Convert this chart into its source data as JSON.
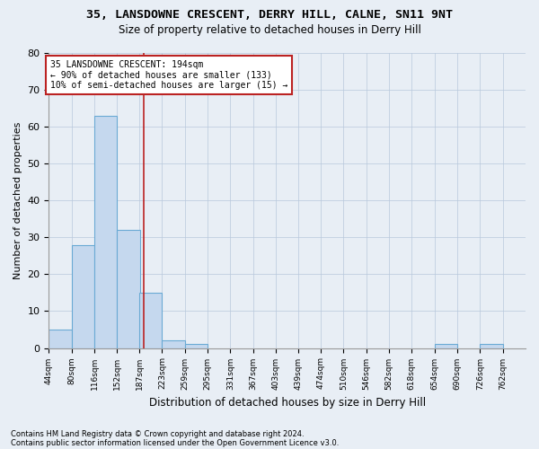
{
  "title1": "35, LANSDOWNE CRESCENT, DERRY HILL, CALNE, SN11 9NT",
  "title2": "Size of property relative to detached houses in Derry Hill",
  "xlabel": "Distribution of detached houses by size in Derry Hill",
  "ylabel": "Number of detached properties",
  "footnote1": "Contains HM Land Registry data © Crown copyright and database right 2024.",
  "footnote2": "Contains public sector information licensed under the Open Government Licence v3.0.",
  "bin_edges": [
    44,
    80,
    116,
    152,
    187,
    223,
    259,
    295,
    331,
    367,
    403,
    439,
    474,
    510,
    546,
    582,
    618,
    654,
    690,
    726,
    762
  ],
  "bar_heights": [
    5,
    28,
    63,
    32,
    15,
    2,
    1,
    0,
    0,
    0,
    0,
    0,
    0,
    0,
    0,
    0,
    0,
    1,
    0,
    1
  ],
  "bar_color": "#c5d8ee",
  "bar_edge_color": "#6aaad4",
  "property_size": 194,
  "red_line_color": "#bb2222",
  "ylim": [
    0,
    80
  ],
  "yticks": [
    0,
    10,
    20,
    30,
    40,
    50,
    60,
    70,
    80
  ],
  "annotation_line1": "35 LANSDOWNE CRESCENT: 194sqm",
  "annotation_line2": "← 90% of detached houses are smaller (133)",
  "annotation_line3": "10% of semi-detached houses are larger (15) →",
  "annotation_box_color": "#ffffff",
  "annotation_box_edge": "#bb2222",
  "background_color": "#e8eef5"
}
